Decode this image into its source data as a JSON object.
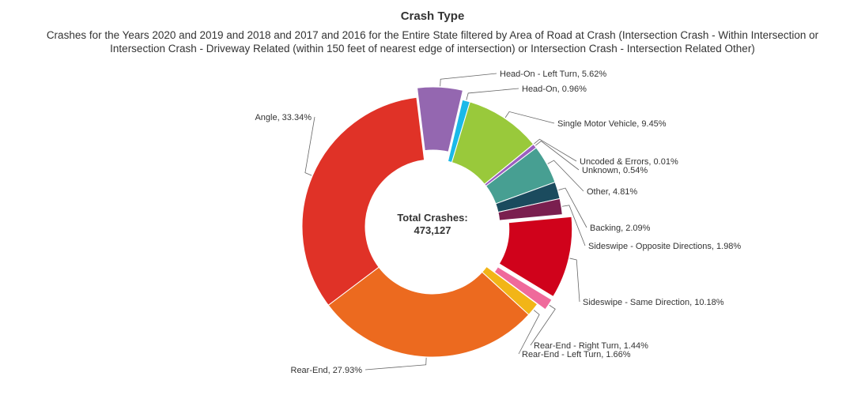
{
  "chart_data": {
    "type": "pie",
    "variant": "donut",
    "title": "Crash Type",
    "subtitle_line1": "Crashes for the Years 2020 and 2019 and 2018 and 2017 and 2016 for the Entire State filtered by Area of Road at Crash (Intersection Crash - Within Intersection or",
    "subtitle_line2": "Intersection Crash - Driveway Related (within 150 feet of nearest edge of intersection) or Intersection Crash - Intersection Related Other)",
    "center_label": "Total Crashes:",
    "center_value": "473,127",
    "slices": [
      {
        "name": "Head-On - Left Turn",
        "value": 5.62,
        "label": "Head-On - Left Turn, 5.62%",
        "color": "#9467b0",
        "exploded": true
      },
      {
        "name": "Head-On",
        "value": 0.96,
        "label": "Head-On, 0.96%",
        "color": "#1ab9e8",
        "exploded": false
      },
      {
        "name": "Single Motor Vehicle",
        "value": 9.45,
        "label": "Single Motor Vehicle, 9.45%",
        "color": "#99c93b",
        "exploded": false
      },
      {
        "name": "Uncoded & Errors",
        "value": 0.01,
        "label": "Uncoded & Errors, 0.01%",
        "color": "#7e57b1",
        "exploded": false
      },
      {
        "name": "Unknown",
        "value": 0.54,
        "label": "Unknown, 0.54%",
        "color": "#9b5fc0",
        "exploded": false
      },
      {
        "name": "Other",
        "value": 4.81,
        "label": "Other, 4.81%",
        "color": "#479f92",
        "exploded": false
      },
      {
        "name": "Backing",
        "value": 2.09,
        "label": "Backing, 2.09%",
        "color": "#1b4b5e",
        "exploded": false
      },
      {
        "name": "Sideswipe - Opposite Directions",
        "value": 1.98,
        "label": "Sideswipe - Opposite Directions, 1.98%",
        "color": "#7a1f4f",
        "exploded": false
      },
      {
        "name": "Sideswipe - Same Direction",
        "value": 10.18,
        "label": "Sideswipe - Same Direction, 10.18%",
        "color": "#d0021b",
        "exploded": true
      },
      {
        "name": "Rear-End - Right Turn",
        "value": 1.44,
        "label": "Rear-End - Right Turn, 1.44%",
        "color": "#ef6a9b",
        "exploded": true
      },
      {
        "name": "Rear-End - Left Turn",
        "value": 1.66,
        "label": "Rear-End - Left Turn, 1.66%",
        "color": "#f2b517",
        "exploded": false
      },
      {
        "name": "Rear-End",
        "value": 27.93,
        "label": "Rear-End, 27.93%",
        "color": "#ec6a1f",
        "exploded": false
      },
      {
        "name": "Angle",
        "value": 33.34,
        "label": "Angle, 33.34%",
        "color": "#e03227",
        "exploded": false
      }
    ]
  }
}
